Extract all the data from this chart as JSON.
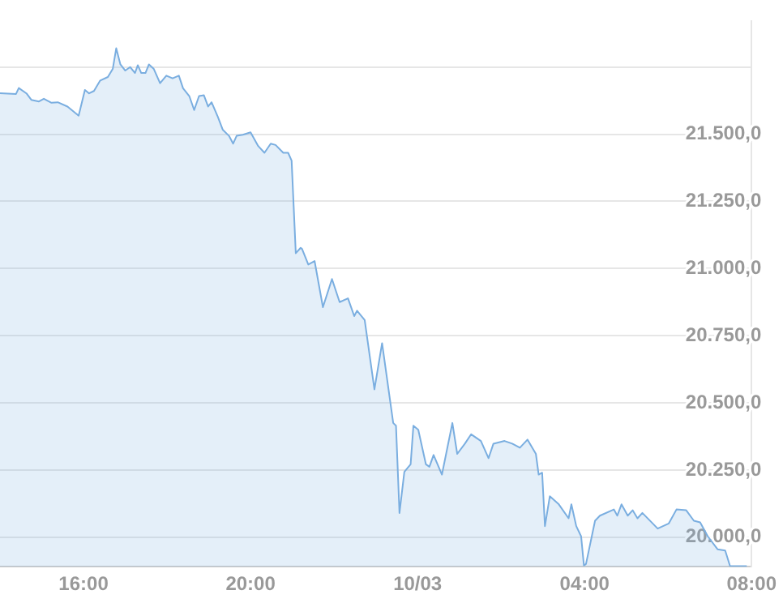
{
  "chart_data": {
    "type": "area",
    "color": "#7aaee0",
    "x": [
      "--03-09T14:00",
      "--03-09T14:23",
      "--03-09T14:27",
      "--03-09T14:38",
      "--03-09T14:45",
      "--03-09T14:56",
      "--03-09T15:03",
      "--03-09T15:14",
      "--03-09T15:23",
      "--03-09T15:37",
      "--03-09T15:53",
      "--03-09T16:02",
      "--03-09T16:08",
      "--03-09T16:15",
      "--03-09T16:24",
      "--03-09T16:35",
      "--03-09T16:42",
      "--03-09T16:47",
      "--03-09T16:53",
      "--03-09T17:00",
      "--03-09T17:07",
      "--03-09T17:14",
      "--03-09T17:18",
      "--03-09T17:23",
      "--03-09T17:29",
      "--03-09T17:34",
      "--03-09T17:41",
      "--03-09T17:50",
      "--03-09T17:59",
      "--03-09T18:08",
      "--03-09T18:17",
      "--03-09T18:23",
      "--03-09T18:32",
      "--03-09T18:39",
      "--03-09T18:46",
      "--03-09T18:53",
      "--03-09T18:59",
      "--03-09T19:04",
      "--03-09T19:13",
      "--03-09T19:20",
      "--03-09T19:29",
      "--03-09T19:35",
      "--03-09T19:40",
      "--03-09T19:49",
      "--03-09T20:00",
      "--03-09T20:11",
      "--03-09T20:20",
      "--03-09T20:29",
      "--03-09T20:36",
      "--03-09T20:47",
      "--03-09T20:54",
      "--03-09T20:59",
      "--03-09T21:05",
      "--03-09T21:12",
      "--03-09T21:14",
      "--03-09T21:23",
      "--03-09T21:32",
      "--03-09T21:44",
      "--03-09T21:57",
      "--03-09T22:08",
      "--03-09T22:20",
      "--03-09T22:29",
      "--03-09T22:33",
      "--03-09T22:44",
      "--03-09T22:58",
      "--03-09T23:09",
      "--03-09T23:25",
      "--03-09T23:29",
      "--03-09T23:34",
      "--03-09T23:41",
      "--03-09T23:50",
      "--03-09T23:54",
      "--03-10T00:01",
      "--03-10T00:12",
      "--03-10T00:17",
      "--03-10T00:23",
      "--03-10T00:35",
      "--03-10T00:50",
      "--03-10T00:57",
      "--03-10T01:08",
      "--03-10T01:17",
      "--03-10T01:31",
      "--03-10T01:42",
      "--03-10T01:49",
      "--03-10T02:05",
      "--03-10T02:16",
      "--03-10T02:27",
      "--03-10T02:38",
      "--03-10T02:50",
      "--03-10T02:54",
      "--03-10T02:59",
      "--03-10T03:03",
      "--03-10T03:10",
      "--03-10T03:23",
      "--03-10T03:37",
      "--03-10T03:41",
      "--03-10T03:48",
      "--03-10T03:55",
      "--03-10T03:59",
      "--03-10T04:02",
      "--03-10T04:15",
      "--03-10T04:22",
      "--03-10T04:42",
      "--03-10T04:47",
      "--03-10T04:53",
      "--03-10T05:02",
      "--03-10T05:09",
      "--03-10T05:16",
      "--03-10T05:23",
      "--03-10T05:45",
      "--03-10T06:01",
      "--03-10T06:12",
      "--03-10T06:26",
      "--03-10T06:37",
      "--03-10T06:46",
      "--03-10T06:57",
      "--03-10T07:11",
      "--03-10T07:22",
      "--03-10T07:29",
      "--03-10T07:53"
    ],
    "values": [
      21653,
      21650,
      21672,
      21652,
      21628,
      21622,
      21632,
      21617,
      21619,
      21603,
      21569,
      21665,
      21652,
      21661,
      21700,
      21713,
      21743,
      21820,
      21760,
      21737,
      21750,
      21728,
      21757,
      21728,
      21728,
      21760,
      21743,
      21690,
      21718,
      21708,
      21718,
      21671,
      21642,
      21590,
      21642,
      21645,
      21603,
      21619,
      21565,
      21517,
      21494,
      21465,
      21494,
      21498,
      21507,
      21456,
      21431,
      21465,
      21460,
      21431,
      21431,
      21402,
      21057,
      21077,
      21073,
      21015,
      21028,
      20856,
      20961,
      20875,
      20889,
      20823,
      20843,
      20808,
      20550,
      20722,
      20425,
      20415,
      20090,
      20243,
      20271,
      20415,
      20400,
      20271,
      20262,
      20306,
      20233,
      20425,
      20310,
      20348,
      20383,
      20358,
      20294,
      20348,
      20358,
      20348,
      20333,
      20363,
      20310,
      20233,
      20240,
      20041,
      20152,
      20122,
      20070,
      20122,
      20041,
      20003,
      19895,
      19900,
      20061,
      20080,
      20103,
      20080,
      20122,
      20080,
      20100,
      20070,
      20090,
      20032,
      20051,
      20103,
      20100,
      20061,
      20055,
      20003,
      19955,
      19950,
      19892,
      19892
    ],
    "xlim": [
      "--03-09T14:00",
      "--03-10T08:00"
    ],
    "xticks": [
      {
        "value": "--03-09T16:00",
        "label": "16:00"
      },
      {
        "value": "--03-09T20:00",
        "label": "20:00"
      },
      {
        "value": "--03-10T00:00",
        "label": "10/03"
      },
      {
        "value": "--03-10T04:00",
        "label": "04:00"
      },
      {
        "value": "--03-10T08:00",
        "label": "08:00"
      }
    ],
    "ylim": [
      19890,
      21920
    ],
    "yticks": [
      {
        "value": 20000,
        "label": "20.000,0"
      },
      {
        "value": 20250,
        "label": "20.250,0"
      },
      {
        "value": 20500,
        "label": "20.500,0"
      },
      {
        "value": 20750,
        "label": "20.750,0"
      },
      {
        "value": 21000,
        "label": "21.000,0"
      },
      {
        "value": 21250,
        "label": "21.250,0"
      },
      {
        "value": 21500,
        "label": "21.500,0"
      },
      {
        "value": 21750,
        "label": null
      }
    ],
    "grid": "y",
    "legend": false,
    "marker": "none",
    "line_style": "solid"
  }
}
